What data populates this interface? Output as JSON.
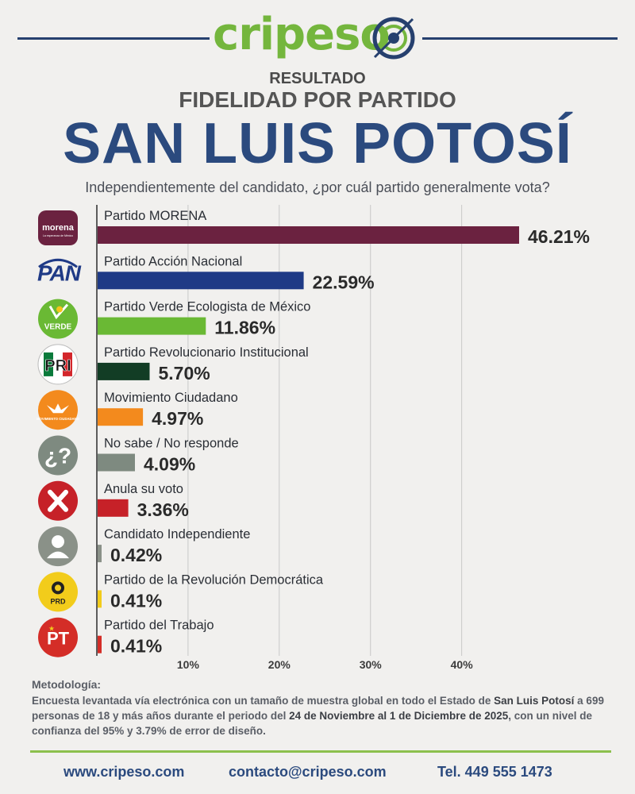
{
  "brand": {
    "name": "cripeso"
  },
  "header": {
    "kicker": "RESULTADO",
    "subtitle": "FIDELIDAD POR PARTIDO",
    "title": "SAN LUIS POTOSÍ",
    "question": "Independientemente del candidato, ¿por cuál partido generalmente vota?"
  },
  "chart_data": {
    "type": "bar",
    "orientation": "horizontal",
    "categories": [
      "Partido MORENA",
      "Partido Acción Nacional",
      "Partido Verde Ecologista de México",
      "Partido Revolucionario Institucional",
      "Movimiento Ciudadano",
      "No sabe / No responde",
      "Anula su voto",
      "Candidato Independiente",
      "Partido de la Revolución Democrática",
      "Partido del Trabajo"
    ],
    "values": [
      46.21,
      22.59,
      11.86,
      5.7,
      4.97,
      4.09,
      3.36,
      0.42,
      0.41,
      0.41
    ],
    "value_labels": [
      "46.21%",
      "22.59%",
      "11.86%",
      "5.70%",
      "4.97%",
      "4.09%",
      "3.36%",
      "0.42%",
      "0.41%",
      "0.41%"
    ],
    "colors": [
      "#6b2240",
      "#1f3a86",
      "#6ab934",
      "#123d25",
      "#f38a1d",
      "#7e8a80",
      "#c62128",
      "#8a9188",
      "#f2cc1b",
      "#d42d27"
    ],
    "icons": [
      "morena-logo",
      "pan-logo",
      "verde-logo",
      "pri-logo",
      "movimiento-ciudadano-logo",
      "question-icon",
      "x-icon",
      "person-icon",
      "prd-logo",
      "pt-logo"
    ],
    "x_ticks": [
      "10%",
      "20%",
      "30%",
      "40%"
    ],
    "xlim": [
      0,
      47
    ],
    "grid": true,
    "logo_text": {
      "morena": "morena",
      "morena_sub": "La esperanza de México",
      "pan": "PAN",
      "verde": "VERDE",
      "pri": "PRI",
      "mc": "MOVIMIENTO CIUDADANO",
      "prd": "PRD",
      "pt": "PT"
    }
  },
  "methodology": {
    "title": "Metodología:",
    "t1": "Encuesta levantada vía electrónica con un tamaño de muestra global en todo el Estado de ",
    "b1": "San Luis Potosí",
    "t2": " a 699 personas de 18 y más años durante el periodo del ",
    "b2": "24 de Noviembre al 1 de Diciembre de 2025",
    "t3": ", con un nivel de confianza del 95% y 3.79% de error de diseño."
  },
  "footer": {
    "website": "www.cripeso.com",
    "email": "contacto@cripeso.com",
    "phone": "Tel. 449 555 1473"
  }
}
